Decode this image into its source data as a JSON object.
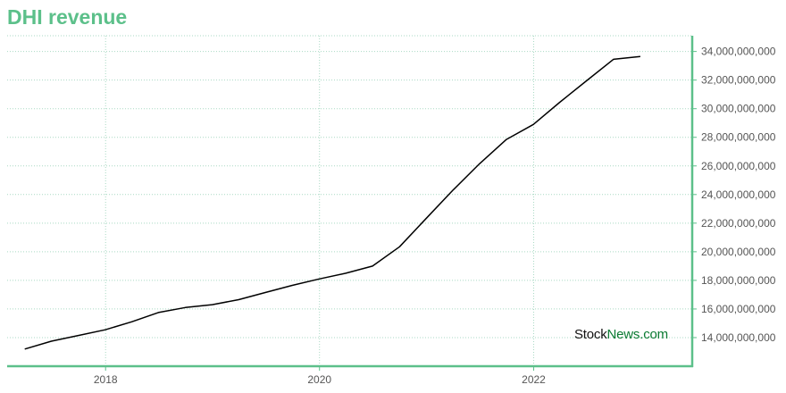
{
  "chart_data": {
    "type": "line",
    "title": "DHI revenue",
    "xlabel": "",
    "ylabel": "",
    "x": [
      "2017-03-31",
      "2017-06-30",
      "2017-09-30",
      "2017-12-31",
      "2018-03-31",
      "2018-06-30",
      "2018-09-30",
      "2018-12-31",
      "2019-03-31",
      "2019-06-30",
      "2019-09-30",
      "2019-12-31",
      "2020-03-31",
      "2020-06-30",
      "2020-09-30",
      "2020-12-31",
      "2021-03-31",
      "2021-06-30",
      "2021-09-30",
      "2021-12-31",
      "2022-03-31",
      "2022-06-30",
      "2022-09-30",
      "2022-12-31"
    ],
    "series": [
      {
        "name": "",
        "values": [
          13200000000,
          13750000000,
          14150000000,
          14550000000,
          15100000000,
          15750000000,
          16100000000,
          16300000000,
          16650000000,
          17150000000,
          17650000000,
          18100000000,
          18500000000,
          19000000000,
          20350000000,
          22350000000,
          24300000000,
          26150000000,
          27850000000,
          28900000000,
          30450000000,
          31950000000,
          33450000000,
          33650000000
        ]
      }
    ],
    "x_ticks": [
      "2018",
      "2020",
      "2022"
    ],
    "y_ticks": [
      "14,000,000,000",
      "16,000,000,000",
      "18,000,000,000",
      "20,000,000,000",
      "22,000,000,000",
      "24,000,000,000",
      "26,000,000,000",
      "28,000,000,000",
      "30,000,000,000",
      "32,000,000,000",
      "34,000,000,000"
    ],
    "xlim": [
      "2017-01-30",
      "2023-06-26"
    ],
    "ylim": [
      12000000000,
      35100000000
    ],
    "grid": true,
    "legend": "none"
  },
  "watermark": {
    "part1": "Stock",
    "part2": "News.com"
  },
  "colors": {
    "title": "#5cc08a",
    "axis": "#5cc08a",
    "grid": "#a9d9c4",
    "line": "#000000",
    "tick_text": "#555555",
    "watermark_dark": "#111111",
    "watermark_green": "#0a7a32"
  }
}
